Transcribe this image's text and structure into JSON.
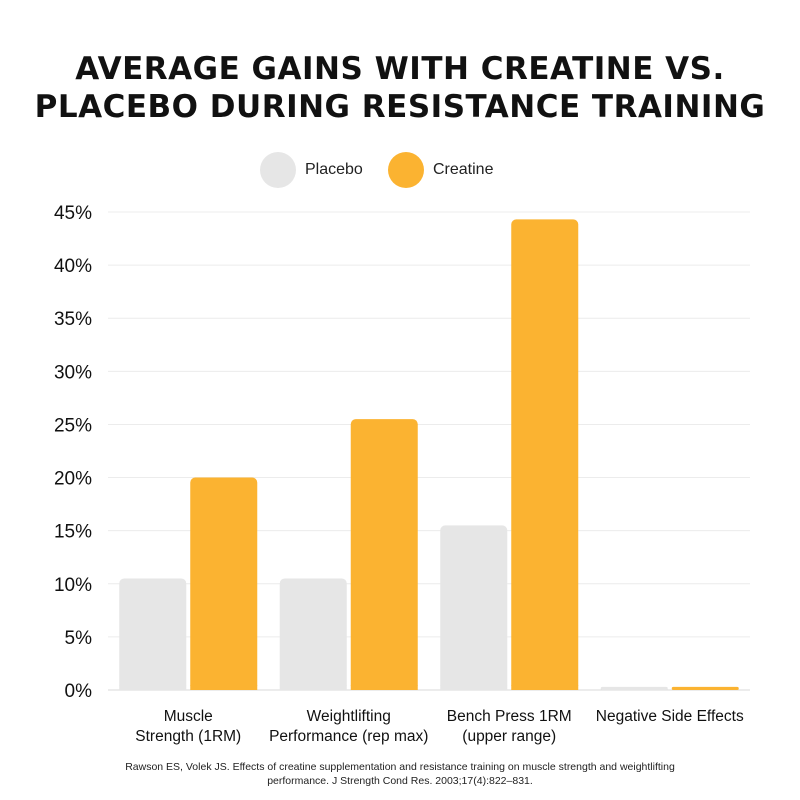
{
  "title_lines": [
    "AVERAGE GAINS WITH CREATINE VS.",
    "PLACEBO DURING RESISTANCE TRAINING"
  ],
  "legend": [
    {
      "label": "Placebo",
      "color": "#e6e6e6"
    },
    {
      "label": "Creatine",
      "color": "#fbb331"
    }
  ],
  "source_lines": [
    "Rawson ES, Volek JS. Effects of creatine supplementation and resistance training on muscle strength and weightlifting",
    "performance. J Strength Cond Res. 2003;17(4):822–831."
  ],
  "chart_data": {
    "type": "bar",
    "title": "AVERAGE GAINS WITH CREATINE VS. PLACEBO DURING RESISTANCE TRAINING",
    "categories": [
      [
        "Muscle",
        "Strength (1RM)"
      ],
      [
        "Weightlifting",
        "Performance (rep max)"
      ],
      [
        "Bench Press 1RM",
        "(upper range)"
      ],
      [
        "Negative Side Effects"
      ]
    ],
    "series": [
      {
        "name": "Placebo",
        "color": "#e6e6e6",
        "values": [
          10.5,
          10.5,
          15.5,
          0.3
        ]
      },
      {
        "name": "Creatine",
        "color": "#fbb331",
        "values": [
          20,
          25.5,
          44.3,
          0.3
        ]
      }
    ],
    "ylim": [
      0,
      45
    ],
    "yticks": [
      0,
      5,
      10,
      15,
      20,
      25,
      30,
      35,
      40,
      45
    ],
    "ytick_labels": [
      "0%",
      "5%",
      "10%",
      "15%",
      "20%",
      "25%",
      "30%",
      "35%",
      "40%",
      "45%"
    ],
    "grid": true,
    "legend_position": "top-center"
  }
}
